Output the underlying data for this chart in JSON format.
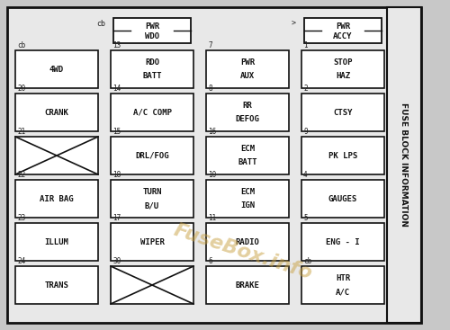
{
  "title": "FUSE BLOCK INFORMATION",
  "fig_bg": "#c8c8c8",
  "main_bg": "#e8e8e8",
  "box_color": "#ffffff",
  "box_edge_color": "#111111",
  "text_color": "#111111",
  "number_color": "#222222",
  "watermark": "FuseBox.info",
  "watermark_color": "#c8a040",
  "top_fuses": [
    {
      "label": "PWR\nWDO",
      "number": "cb",
      "col": 1,
      "is_relay": true
    },
    {
      "label": "PWR\nACCY",
      "number": ">",
      "col": 3,
      "is_relay": true
    }
  ],
  "rows": [
    {
      "row": 0,
      "fuses": [
        {
          "label": "4WD",
          "number": "cb",
          "col": 0
        },
        {
          "label": "RDO\nBATT",
          "number": "13",
          "col": 1
        },
        {
          "label": "PWR\nAUX",
          "number": "7",
          "col": 2
        },
        {
          "label": "STOP\nHAZ",
          "number": "1",
          "col": 3
        }
      ]
    },
    {
      "row": 1,
      "fuses": [
        {
          "label": "CRANK",
          "number": "20",
          "col": 0
        },
        {
          "label": "A/C COMP",
          "number": "14",
          "col": 1
        },
        {
          "label": "RR\nDEFOG",
          "number": "8",
          "col": 2
        },
        {
          "label": "CTSY",
          "number": "2",
          "col": 3
        }
      ]
    },
    {
      "row": 2,
      "fuses": [
        {
          "label": "",
          "number": "21",
          "col": 0,
          "crossed": true
        },
        {
          "label": "DRL/FOG",
          "number": "15",
          "col": 1
        },
        {
          "label": "ECM\nBATT",
          "number": "16",
          "col": 2
        },
        {
          "label": "PK LPS",
          "number": "9",
          "col": 3
        }
      ]
    },
    {
      "row": 3,
      "fuses": [
        {
          "label": "AIR BAG",
          "number": "22",
          "col": 0
        },
        {
          "label": "TURN\nB/U",
          "number": "18",
          "col": 1
        },
        {
          "label": "ECM\nIGN",
          "number": "10",
          "col": 2
        },
        {
          "label": "GAUGES",
          "number": "4",
          "col": 3
        }
      ]
    },
    {
      "row": 4,
      "fuses": [
        {
          "label": "ILLUM",
          "number": "23",
          "col": 0
        },
        {
          "label": "WIPER",
          "number": "17",
          "col": 1
        },
        {
          "label": "RADIO",
          "number": "11",
          "col": 2
        },
        {
          "label": "ENG - I",
          "number": "5",
          "col": 3
        }
      ]
    },
    {
      "row": 5,
      "fuses": [
        {
          "label": "TRANS",
          "number": "24",
          "col": 0
        },
        {
          "label": "",
          "number": "30",
          "col": 1,
          "crossed": true
        },
        {
          "label": "BRAKE",
          "number": "6",
          "col": 2
        },
        {
          "label": "HTR\nA/C",
          "number": "cb",
          "col": 3
        }
      ]
    }
  ]
}
